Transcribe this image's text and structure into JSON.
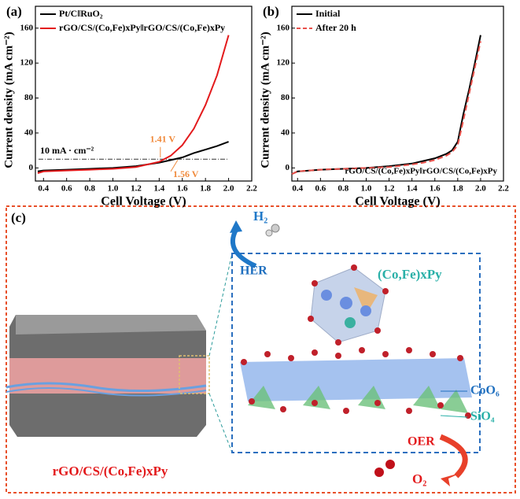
{
  "chart_data": [
    {
      "type": "line",
      "panel_label": "(a)",
      "x_label": "Cell Voltage (V)",
      "y_label": "Current density (mA cm⁻²)",
      "xlim": [
        0.33,
        2.2
      ],
      "ylim": [
        -15,
        185
      ],
      "xticks": [
        0.4,
        0.6,
        0.8,
        {
          "value": 1,
          "label": "1.0"
        },
        1.2,
        1.4,
        1.6,
        1.8,
        {
          "value": 2,
          "label": "2.0"
        },
        2.2
      ],
      "yticks": [
        0,
        40,
        80,
        120,
        160
      ],
      "x": [
        0.35,
        0.4,
        0.6,
        0.8,
        1.0,
        1.2,
        1.4,
        1.5,
        1.6,
        1.7,
        1.8,
        1.9,
        2.0
      ],
      "series": [
        {
          "name": "Pt/C‖RuO₂",
          "color": "#000000",
          "values": [
            -4,
            -3,
            -2,
            -1,
            0,
            2,
            6,
            9,
            12,
            17,
            21,
            25,
            30
          ]
        },
        {
          "name": "rGO/CS/(Co,Fe)xPy‖rGO/CS/(Co,Fe)xPy",
          "color": "#e31a1c",
          "values": [
            -6,
            -4,
            -3,
            -2,
            -1,
            1,
            7,
            14,
            26,
            45,
            72,
            106,
            152
          ]
        }
      ],
      "reference_line": {
        "value": 10,
        "label": "10 mA · cm⁻²"
      },
      "annotations": [
        "1.41 V",
        "1.56 V"
      ],
      "legend": "upper left"
    },
    {
      "type": "line",
      "panel_label": "(b)",
      "x_label": "Cell Voltage (V)",
      "y_label": "Current density (mA cm⁻²)",
      "xlim": [
        0.35,
        2.2
      ],
      "ylim": [
        -15,
        185
      ],
      "xticks": [
        0.4,
        0.6,
        0.8,
        {
          "value": 1,
          "label": "1.0"
        },
        1.2,
        1.4,
        1.6,
        1.8,
        {
          "value": 2,
          "label": "2.0"
        },
        2.2
      ],
      "yticks": [
        0,
        40,
        80,
        120,
        160
      ],
      "x": [
        0.35,
        0.4,
        0.6,
        0.8,
        1.0,
        1.2,
        1.4,
        1.5,
        1.6,
        1.7,
        1.75,
        1.8,
        1.85,
        1.9,
        1.95,
        2.0
      ],
      "series": [
        {
          "name": "Initial",
          "color": "#000000",
          "values": [
            -7,
            -4,
            -2,
            -1,
            0,
            2,
            5,
            8,
            11,
            16,
            20,
            30,
            62,
            90,
            120,
            152
          ]
        },
        {
          "name": "After 20 h",
          "color": "#e8504a",
          "dashed": true,
          "values": [
            -7,
            -4,
            -2,
            -1,
            0,
            1,
            4,
            6,
            9,
            14,
            18,
            26,
            55,
            85,
            115,
            145
          ]
        }
      ],
      "annotations": [
        "rGO/CS/(Co,Fe)xPy‖rGO/CS/(Co,Fe)xPy"
      ],
      "legend": "upper left"
    }
  ],
  "diagram": {
    "panel_label": "(c)",
    "h2": "H₂",
    "her": "HER",
    "compound": "(Co,Fe)xPy",
    "coo6": "CoO₆",
    "sio4": "SiO₄",
    "oer": "OER",
    "o2": "O₂",
    "material": "rGO/CS/(Co,Fe)xPy"
  }
}
